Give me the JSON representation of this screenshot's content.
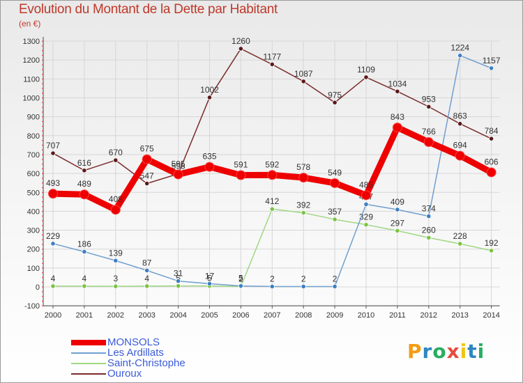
{
  "title": "Evolution du Montant de la Dette par Habitant",
  "unit_label": "(en €)",
  "logo": {
    "text": "Proxiti",
    "letters": [
      {
        "ch": "P",
        "color": "#f39c12"
      },
      {
        "ch": "r",
        "color": "#2e86c1"
      },
      {
        "ch": "o",
        "color": "#27ae60"
      },
      {
        "ch": "x",
        "color": "#e74c3c"
      },
      {
        "ch": "i",
        "color": "#f1c40f"
      },
      {
        "ch": "t",
        "color": "#2e86c1"
      },
      {
        "ch": "i",
        "color": "#27ae60"
      }
    ]
  },
  "chart_data": {
    "type": "line",
    "x": [
      "2000",
      "2001",
      "2002",
      "2003",
      "2004",
      "2005",
      "2006",
      "2007",
      "2008",
      "2009",
      "2010",
      "2011",
      "2012",
      "2013",
      "2014"
    ],
    "ylim": [
      -100,
      1300
    ],
    "yticks": [
      -100,
      0,
      100,
      200,
      300,
      400,
      500,
      600,
      700,
      800,
      900,
      1000,
      1100,
      1200,
      1300
    ],
    "grid": true,
    "legend": "bottom-left",
    "series": [
      {
        "name": "Ouroux",
        "color": "#7b2a2a",
        "dot": "#5a1a1a",
        "values": [
          707,
          616,
          670,
          547,
          598,
          1002,
          1260,
          1177,
          1087,
          975,
          1109,
          1034,
          953,
          863,
          784
        ]
      },
      {
        "name": "Saint-Christophe",
        "color": "#9fd882",
        "dot": "#7cc244",
        "values": [
          4,
          4,
          3,
          4,
          5,
          5,
          2,
          412,
          392,
          357,
          329,
          297,
          260,
          228,
          192
        ]
      },
      {
        "name": "Les Ardillats",
        "color": "#6f9fcf",
        "dot": "#3f7fc0",
        "values": [
          229,
          186,
          139,
          87,
          31,
          17,
          5,
          2,
          2,
          2,
          437,
          409,
          374,
          1224,
          1157
        ]
      },
      {
        "name": "MONSOLS",
        "color": "#ee0000",
        "dot": "#ee0000",
        "values": [
          493,
          489,
          408,
          675,
          595,
          635,
          591,
          592,
          578,
          549,
          485,
          843,
          766,
          694,
          606
        ]
      }
    ],
    "legend_order": [
      "MONSOLS",
      "Les Ardillats",
      "Saint-Christophe",
      "Ouroux"
    ]
  }
}
